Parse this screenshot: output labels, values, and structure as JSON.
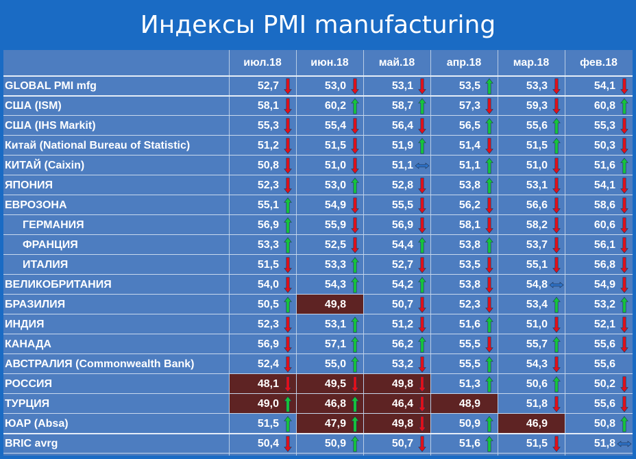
{
  "title": "Индексы PMI manufacturing",
  "columns": [
    "июл.18",
    "июн.18",
    "май.18",
    "апр.18",
    "мар.18",
    "фев.18"
  ],
  "colors": {
    "up": "#16c43c",
    "down": "#e2101a",
    "flat": "#2d72c8",
    "highlight": "#5e2323"
  },
  "rows": [
    {
      "name": "GLOBAL PMI mfg",
      "indent": false,
      "values": [
        "52,7",
        "53,0",
        "53,1",
        "53,5",
        "53,3",
        "54,1"
      ],
      "arrows": [
        "down",
        "down",
        "down",
        "up",
        "down",
        "down"
      ],
      "highlight": [
        false,
        false,
        false,
        false,
        false,
        false
      ]
    },
    {
      "name": "США (ISM)",
      "indent": false,
      "values": [
        "58,1",
        "60,2",
        "58,7",
        "57,3",
        "59,3",
        "60,8"
      ],
      "arrows": [
        "down",
        "up",
        "up",
        "down",
        "down",
        "up"
      ],
      "highlight": [
        false,
        false,
        false,
        false,
        false,
        false
      ]
    },
    {
      "name": "США (IHS Markit)",
      "indent": false,
      "values": [
        "55,3",
        "55,4",
        "56,4",
        "56,5",
        "55,6",
        "55,3"
      ],
      "arrows": [
        "down",
        "down",
        "down",
        "up",
        "up",
        "down"
      ],
      "highlight": [
        false,
        false,
        false,
        false,
        false,
        false
      ]
    },
    {
      "name": "Китай (National Bureau of Statistic)",
      "indent": false,
      "values": [
        "51,2",
        "51,5",
        "51,9",
        "51,4",
        "51,5",
        "50,3"
      ],
      "arrows": [
        "down",
        "down",
        "up",
        "down",
        "up",
        "down"
      ],
      "highlight": [
        false,
        false,
        false,
        false,
        false,
        false
      ]
    },
    {
      "name": "КИТАЙ (Caixin)",
      "indent": false,
      "values": [
        "50,8",
        "51,0",
        "51,1",
        "51,1",
        "51,0",
        "51,6"
      ],
      "arrows": [
        "down",
        "down",
        "flat",
        "up",
        "down",
        "up"
      ],
      "highlight": [
        false,
        false,
        false,
        false,
        false,
        false
      ]
    },
    {
      "name": "ЯПОНИЯ",
      "indent": false,
      "values": [
        "52,3",
        "53,0",
        "52,8",
        "53,8",
        "53,1",
        "54,1"
      ],
      "arrows": [
        "down",
        "up",
        "down",
        "up",
        "down",
        "down"
      ],
      "highlight": [
        false,
        false,
        false,
        false,
        false,
        false
      ]
    },
    {
      "name": "ЕВРОЗОНА",
      "indent": false,
      "values": [
        "55,1",
        "54,9",
        "55,5",
        "56,2",
        "56,6",
        "58,6"
      ],
      "arrows": [
        "up",
        "down",
        "down",
        "down",
        "down",
        "down"
      ],
      "highlight": [
        false,
        false,
        false,
        false,
        false,
        false
      ]
    },
    {
      "name": "ГЕРМАНИЯ",
      "indent": true,
      "values": [
        "56,9",
        "55,9",
        "56,9",
        "58,1",
        "58,2",
        "60,6"
      ],
      "arrows": [
        "up",
        "down",
        "down",
        "down",
        "down",
        "down"
      ],
      "highlight": [
        false,
        false,
        false,
        false,
        false,
        false
      ]
    },
    {
      "name": "ФРАНЦИЯ",
      "indent": true,
      "values": [
        "53,3",
        "52,5",
        "54,4",
        "53,8",
        "53,7",
        "56,1"
      ],
      "arrows": [
        "up",
        "down",
        "up",
        "up",
        "down",
        "down"
      ],
      "highlight": [
        false,
        false,
        false,
        false,
        false,
        false
      ]
    },
    {
      "name": "ИТАЛИЯ",
      "indent": true,
      "values": [
        "51,5",
        "53,3",
        "52,7",
        "53,5",
        "55,1",
        "56,8"
      ],
      "arrows": [
        "down",
        "up",
        "down",
        "down",
        "down",
        "down"
      ],
      "highlight": [
        false,
        false,
        false,
        false,
        false,
        false
      ]
    },
    {
      "name": "ВЕЛИКОБРИТАНИЯ",
      "indent": false,
      "values": [
        "54,0",
        "54,3",
        "54,2",
        "53,8",
        "54,8",
        "54,9"
      ],
      "arrows": [
        "down",
        "up",
        "up",
        "down",
        "flat",
        "down"
      ],
      "highlight": [
        false,
        false,
        false,
        false,
        false,
        false
      ]
    },
    {
      "name": "БРАЗИЛИЯ",
      "indent": false,
      "values": [
        "50,5",
        "49,8",
        "50,7",
        "52,3",
        "53,4",
        "53,2"
      ],
      "arrows": [
        "up",
        "",
        "down",
        "down",
        "up",
        "up"
      ],
      "highlight": [
        false,
        true,
        false,
        false,
        false,
        false
      ]
    },
    {
      "name": "ИНДИЯ",
      "indent": false,
      "values": [
        "52,3",
        "53,1",
        "51,2",
        "51,6",
        "51,0",
        "52,1"
      ],
      "arrows": [
        "down",
        "up",
        "down",
        "up",
        "down",
        "down"
      ],
      "highlight": [
        false,
        false,
        false,
        false,
        false,
        false
      ]
    },
    {
      "name": "КАНАДА",
      "indent": false,
      "values": [
        "56,9",
        "57,1",
        "56,2",
        "55,5",
        "55,7",
        "55,6"
      ],
      "arrows": [
        "down",
        "up",
        "up",
        "down",
        "up",
        "down"
      ],
      "highlight": [
        false,
        false,
        false,
        false,
        false,
        false
      ]
    },
    {
      "name": "АВСТРАЛИЯ (Commonwealth Bank)",
      "indent": false,
      "values": [
        "52,4",
        "55,0",
        "53,2",
        "55,5",
        "54,3",
        "55,6"
      ],
      "arrows": [
        "down",
        "up",
        "down",
        "up",
        "down",
        ""
      ],
      "highlight": [
        false,
        false,
        false,
        false,
        false,
        false
      ]
    },
    {
      "name": "РОССИЯ",
      "indent": false,
      "values": [
        "48,1",
        "49,5",
        "49,8",
        "51,3",
        "50,6",
        "50,2"
      ],
      "arrows": [
        "down",
        "down",
        "down",
        "up",
        "up",
        "down"
      ],
      "highlight": [
        true,
        true,
        true,
        false,
        false,
        false
      ]
    },
    {
      "name": "ТУРЦИЯ",
      "indent": false,
      "values": [
        "49,0",
        "46,8",
        "46,4",
        "48,9",
        "51,8",
        "55,6"
      ],
      "arrows": [
        "up",
        "up",
        "down",
        "",
        "down",
        "down"
      ],
      "highlight": [
        true,
        true,
        true,
        true,
        false,
        false
      ]
    },
    {
      "name": "ЮАР (Absa)",
      "indent": false,
      "values": [
        "51,5",
        "47,9",
        "49,8",
        "50,9",
        "46,9",
        "50,8"
      ],
      "arrows": [
        "up",
        "up",
        "down",
        "up",
        "",
        "up"
      ],
      "highlight": [
        false,
        true,
        true,
        false,
        true,
        false
      ]
    },
    {
      "name": "BRIC avrg",
      "indent": false,
      "values": [
        "50,4",
        "50,9",
        "50,7",
        "51,6",
        "51,5",
        "51,8"
      ],
      "arrows": [
        "down",
        "up",
        "down",
        "up",
        "down",
        "flat"
      ],
      "highlight": [
        false,
        false,
        false,
        false,
        false,
        false
      ]
    }
  ]
}
